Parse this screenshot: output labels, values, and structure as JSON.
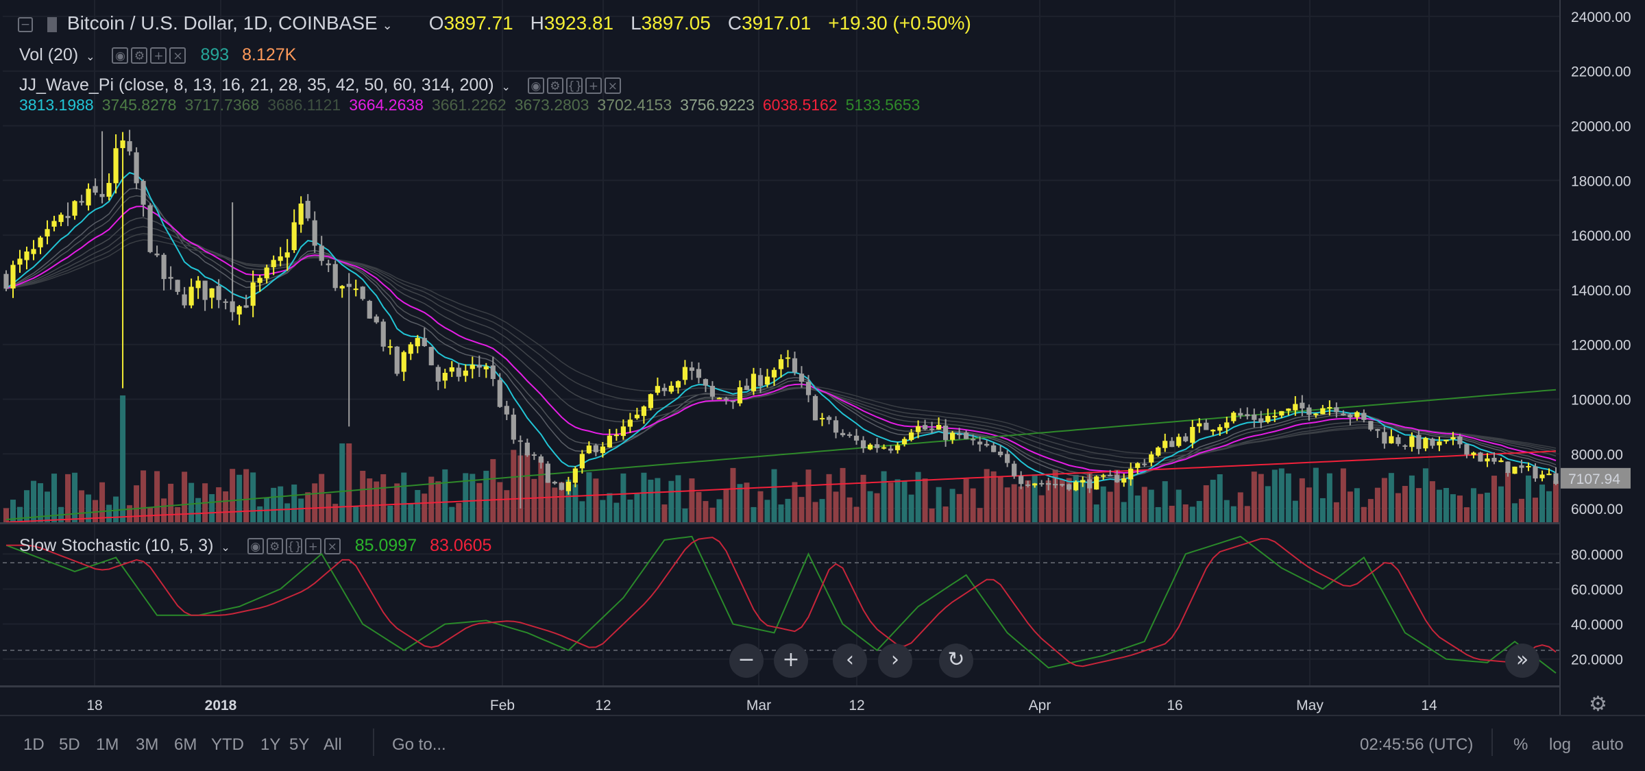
{
  "header": {
    "collapse_icon": "minus-square-icon",
    "symbol_title": "Bitcoin / U.S. Dollar, 1D, COINBASE",
    "ohlc": {
      "o_label": "O",
      "o": "3897.71",
      "h_label": "H",
      "h": "3923.81",
      "l_label": "L",
      "l": "3897.05",
      "c_label": "C",
      "c": "3917.01",
      "change": "+19.30 (+0.50%)"
    }
  },
  "vol": {
    "label": "Vol (20)",
    "v1": "893",
    "v2": "8.127K"
  },
  "wave": {
    "label": "JJ_Wave_Pi (close, 8, 13, 16, 21, 28, 35, 42, 50, 60, 314, 200)",
    "values": [
      "3813.1988",
      "3745.8278",
      "3717.7368",
      "3686.1121",
      "3664.2638",
      "3661.2262",
      "3673.2803",
      "3702.4153",
      "3756.9223",
      "6038.5162",
      "5133.5653"
    ],
    "colors": [
      "#22c5d6",
      "#4d7c45",
      "#4a6b45",
      "#3e5040",
      "#e61ee6",
      "#4a6045",
      "#4f6b4a",
      "#758a6b",
      "#8fa38a",
      "#f2213a",
      "#2f8a2a"
    ]
  },
  "stoch": {
    "label": "Slow Stochastic (10, 5, 3)",
    "k": "85.0997",
    "d": "83.0605"
  },
  "price_axis": {
    "ticks": [
      "24000.00",
      "22000.00",
      "20000.00",
      "18000.00",
      "16000.00",
      "14000.00",
      "12000.00",
      "10000.00",
      "8000.00",
      "6000.00"
    ],
    "last_price": "7107.94"
  },
  "stoch_axis": {
    "ticks": [
      "80.0000",
      "60.0000",
      "40.0000",
      "20.0000"
    ]
  },
  "time_axis": {
    "ticks": [
      "18",
      "2018",
      "Feb",
      "12",
      "Mar",
      "12",
      "Apr",
      "16",
      "May",
      "14"
    ]
  },
  "bottom": {
    "timeframes": [
      "1D",
      "5D",
      "1M",
      "3M",
      "6M",
      "YTD",
      "1Y",
      "5Y",
      "All"
    ],
    "goto": "Go to...",
    "clock": "02:45:56 (UTC)",
    "pct": "%",
    "log": "log",
    "auto": "auto"
  },
  "colors": {
    "up": "#f5ee34",
    "down": "#9e9e9e",
    "vol_up": "#26716f",
    "vol_down": "#8f3f44",
    "ema_cyan": "#22c5d6",
    "ema_magenta": "#e61ee6",
    "ema_red": "#f2213a",
    "ema_green": "#2f8a2a",
    "stoch_k": "#2a8a2a",
    "stoch_d": "#c8253a"
  },
  "chart_data": [
    {
      "type": "candlestick",
      "title": "Bitcoin / U.S. Dollar, 1D, COINBASE",
      "ylim": [
        5500,
        24600
      ],
      "x_ticks": [
        "18",
        "2018",
        "Feb",
        "12",
        "Mar",
        "12",
        "Apr",
        "16",
        "May",
        "14"
      ],
      "price_keypoints": [
        [
          0,
          14500
        ],
        [
          5,
          15500
        ],
        [
          10,
          17000
        ],
        [
          14,
          17500
        ],
        [
          17,
          19300
        ],
        [
          19,
          17800
        ],
        [
          22,
          14800
        ],
        [
          25,
          13700
        ],
        [
          28,
          14000
        ],
        [
          31,
          13900
        ],
        [
          34,
          13400
        ],
        [
          37,
          14200
        ],
        [
          40,
          15000
        ],
        [
          43,
          17000
        ],
        [
          46,
          15000
        ],
        [
          49,
          14000
        ],
        [
          53,
          13300
        ],
        [
          57,
          11000
        ],
        [
          60,
          12500
        ],
        [
          63,
          10700
        ],
        [
          67,
          11000
        ],
        [
          70,
          11300
        ],
        [
          74,
          8500
        ],
        [
          78,
          7500
        ],
        [
          81,
          6500
        ],
        [
          85,
          8200
        ],
        [
          89,
          8600
        ],
        [
          92,
          9300
        ],
        [
          96,
          10500
        ],
        [
          99,
          11200
        ],
        [
          103,
          10000
        ],
        [
          107,
          10200
        ],
        [
          111,
          11000
        ],
        [
          114,
          11300
        ],
        [
          118,
          9500
        ],
        [
          121,
          8800
        ],
        [
          125,
          8300
        ],
        [
          129,
          8300
        ],
        [
          132,
          9000
        ],
        [
          136,
          8800
        ],
        [
          140,
          8500
        ],
        [
          144,
          8000
        ],
        [
          148,
          7100
        ],
        [
          152,
          6900
        ],
        [
          156,
          6900
        ],
        [
          160,
          7000
        ],
        [
          163,
          7200
        ],
        [
          167,
          8000
        ],
        [
          171,
          8600
        ],
        [
          175,
          9000
        ],
        [
          179,
          9400
        ],
        [
          183,
          9300
        ],
        [
          187,
          9500
        ],
        [
          190,
          9700
        ],
        [
          194,
          9800
        ],
        [
          197,
          9300
        ],
        [
          201,
          8600
        ],
        [
          205,
          8400
        ],
        [
          209,
          8300
        ],
        [
          212,
          8400
        ],
        [
          216,
          7700
        ],
        [
          219,
          7500
        ],
        [
          223,
          7300
        ],
        [
          226,
          7108
        ]
      ],
      "series": [
        {
          "name": "8",
          "color": "#22c5d6",
          "value": "3813.1988"
        },
        {
          "name": "21",
          "color": "#e61ee6",
          "value": "3664.2638"
        },
        {
          "name": "314",
          "color": "#f2213a",
          "value": "6038.5162"
        },
        {
          "name": "200",
          "color": "#2f8a2a",
          "value": "5133.5653"
        }
      ]
    },
    {
      "type": "bar",
      "title": "Vol (20)",
      "values_note": "volume bars in bottom of price pane"
    },
    {
      "type": "line",
      "title": "Slow Stochastic (10, 5, 3)",
      "ylim": [
        5,
        95
      ],
      "reference_lines": [
        75,
        25
      ],
      "k_keypoints": [
        [
          0,
          85
        ],
        [
          10,
          70
        ],
        [
          16,
          78
        ],
        [
          22,
          45
        ],
        [
          28,
          45
        ],
        [
          34,
          50
        ],
        [
          40,
          60
        ],
        [
          46,
          80
        ],
        [
          52,
          40
        ],
        [
          58,
          25
        ],
        [
          64,
          40
        ],
        [
          70,
          42
        ],
        [
          76,
          35
        ],
        [
          82,
          25
        ],
        [
          90,
          55
        ],
        [
          96,
          88
        ],
        [
          100,
          90
        ],
        [
          106,
          40
        ],
        [
          112,
          35
        ],
        [
          117,
          80
        ],
        [
          122,
          40
        ],
        [
          127,
          25
        ],
        [
          133,
          50
        ],
        [
          140,
          68
        ],
        [
          146,
          35
        ],
        [
          152,
          15
        ],
        [
          160,
          22
        ],
        [
          166,
          30
        ],
        [
          172,
          80
        ],
        [
          180,
          90
        ],
        [
          186,
          72
        ],
        [
          192,
          60
        ],
        [
          198,
          78
        ],
        [
          204,
          35
        ],
        [
          210,
          20
        ],
        [
          216,
          18
        ],
        [
          220,
          30
        ],
        [
          226,
          12
        ]
      ]
    }
  ]
}
